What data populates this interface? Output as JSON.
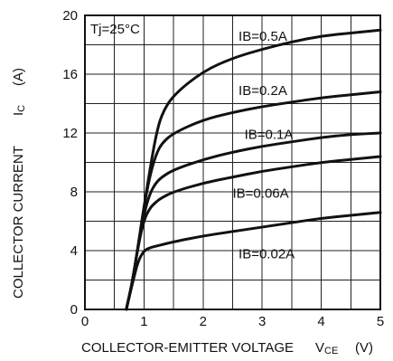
{
  "chart_data": {
    "type": "line",
    "title": "",
    "xlabel": "COLLECTOR-EMITTER VOLTAGE",
    "xlabel_symbol": "V",
    "xlabel_subscript": "CE",
    "xlabel_unit": "(V)",
    "ylabel": "COLLECTOR CURRENT",
    "ylabel_symbol": "I",
    "ylabel_subscript": "C",
    "ylabel_unit": "(A)",
    "condition_text": "Tj=25°C",
    "xlim": [
      0,
      5
    ],
    "ylim": [
      0,
      20
    ],
    "x_ticks": [
      0,
      1,
      2,
      3,
      4,
      5
    ],
    "y_ticks": [
      0,
      4,
      8,
      12,
      16,
      20
    ],
    "x_minor_step": 0.5,
    "y_minor_step": 2,
    "grid": true,
    "legend": "inline-labels",
    "series": [
      {
        "name": "IB=0.5A",
        "x": [
          0.7,
          0.8,
          0.9,
          1.0,
          1.1,
          1.2,
          1.3,
          1.5,
          2.0,
          2.5,
          3.0,
          3.5,
          4.0,
          4.5,
          5.0
        ],
        "y": [
          0.0,
          1.8,
          4.3,
          7.0,
          9.5,
          11.8,
          13.3,
          14.6,
          16.2,
          17.1,
          17.7,
          18.2,
          18.6,
          18.8,
          19.0
        ]
      },
      {
        "name": "IB=0.2A",
        "x": [
          0.7,
          0.8,
          0.9,
          1.0,
          1.1,
          1.2,
          1.3,
          1.5,
          2.0,
          2.5,
          3.0,
          3.5,
          4.0,
          4.5,
          5.0
        ],
        "y": [
          0.0,
          1.8,
          4.3,
          7.0,
          9.1,
          10.5,
          11.3,
          12.0,
          12.9,
          13.4,
          13.8,
          14.1,
          14.4,
          14.6,
          14.8
        ]
      },
      {
        "name": "IB=0.1A",
        "x": [
          0.7,
          0.8,
          0.9,
          1.0,
          1.1,
          1.2,
          1.3,
          1.5,
          2.0,
          2.5,
          3.0,
          3.5,
          4.0,
          4.5,
          5.0
        ],
        "y": [
          0.0,
          1.8,
          4.3,
          6.5,
          7.9,
          8.6,
          9.0,
          9.5,
          10.2,
          10.7,
          11.1,
          11.4,
          11.7,
          11.9,
          12.0
        ]
      },
      {
        "name": "IB=0.06A",
        "x": [
          0.7,
          0.8,
          0.9,
          1.0,
          1.1,
          1.2,
          1.3,
          1.5,
          2.0,
          2.5,
          3.0,
          3.5,
          4.0,
          4.5,
          5.0
        ],
        "y": [
          0.0,
          1.8,
          4.3,
          6.1,
          6.9,
          7.3,
          7.6,
          8.0,
          8.6,
          9.0,
          9.4,
          9.7,
          10.0,
          10.2,
          10.4
        ]
      },
      {
        "name": "IB=0.02A",
        "x": [
          0.7,
          0.8,
          0.9,
          1.0,
          1.1,
          1.2,
          1.3,
          1.5,
          2.0,
          2.5,
          3.0,
          3.5,
          4.0,
          4.5,
          5.0
        ],
        "y": [
          0.0,
          1.7,
          3.3,
          4.0,
          4.2,
          4.3,
          4.4,
          4.6,
          5.0,
          5.3,
          5.6,
          5.9,
          6.2,
          6.4,
          6.6
        ]
      }
    ],
    "inline_labels": [
      {
        "text": "IB=0.5A",
        "x": 2.6,
        "y": 18.6
      },
      {
        "text": "IB=0.2A",
        "x": 2.6,
        "y": 14.9
      },
      {
        "text": "IB=0.1A",
        "x": 2.7,
        "y": 11.9
      },
      {
        "text": "IB=0.06A",
        "x": 2.5,
        "y": 7.9
      },
      {
        "text": "IB=0.02A",
        "x": 2.6,
        "y": 3.8
      }
    ]
  }
}
